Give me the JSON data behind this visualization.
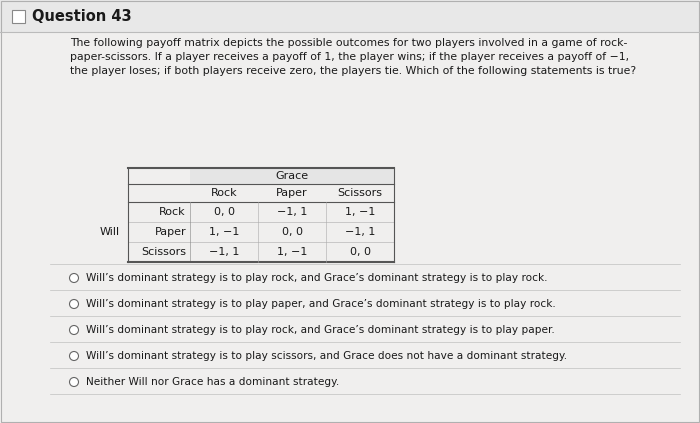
{
  "title": "Question 43",
  "question_text_line1": "The following payoff matrix depicts the possible outcomes for two players involved in a game of rock-",
  "question_text_line2": "paper-scissors. If a player receives a payoff of 1, the player wins; if the player receives a payoff of −1,",
  "question_text_line3": "the player loses; if both players receive zero, the players tie. Which of the following statements is true?",
  "grace_label": "Grace",
  "will_label": "Will",
  "col_headers": [
    "Rock",
    "Paper",
    "Scissors"
  ],
  "row_headers": [
    "Rock",
    "Paper",
    "Scissors"
  ],
  "table_data": [
    [
      "0, 0",
      "−1, 1",
      "1, −1"
    ],
    [
      "1, −1",
      "0, 0",
      "−1, 1"
    ],
    [
      "−1, 1",
      "1, −1",
      "0, 0"
    ]
  ],
  "options": [
    "Will’s dominant strategy is to play rock, and Grace’s dominant strategy is to play rock.",
    "Will’s dominant strategy is to play paper, and Grace’s dominant strategy is to play rock.",
    "Will’s dominant strategy is to play rock, and Grace’s dominant strategy is to play paper.",
    "Will’s dominant strategy is to play scissors, and Grace does not have a dominant strategy.",
    "Neither Will nor Grace has a dominant strategy."
  ],
  "outer_bg": "#d0d0d0",
  "header_bg": "#e8e8e8",
  "card_bg": "#f0efee",
  "table_grace_bg": "#e5e5e5",
  "text_color": "#1a1a1a",
  "light_line": "#cccccc",
  "dark_line": "#555555",
  "title_fontsize": 10.5,
  "body_fontsize": 7.8,
  "table_fontsize": 8.0,
  "option_fontsize": 7.6
}
